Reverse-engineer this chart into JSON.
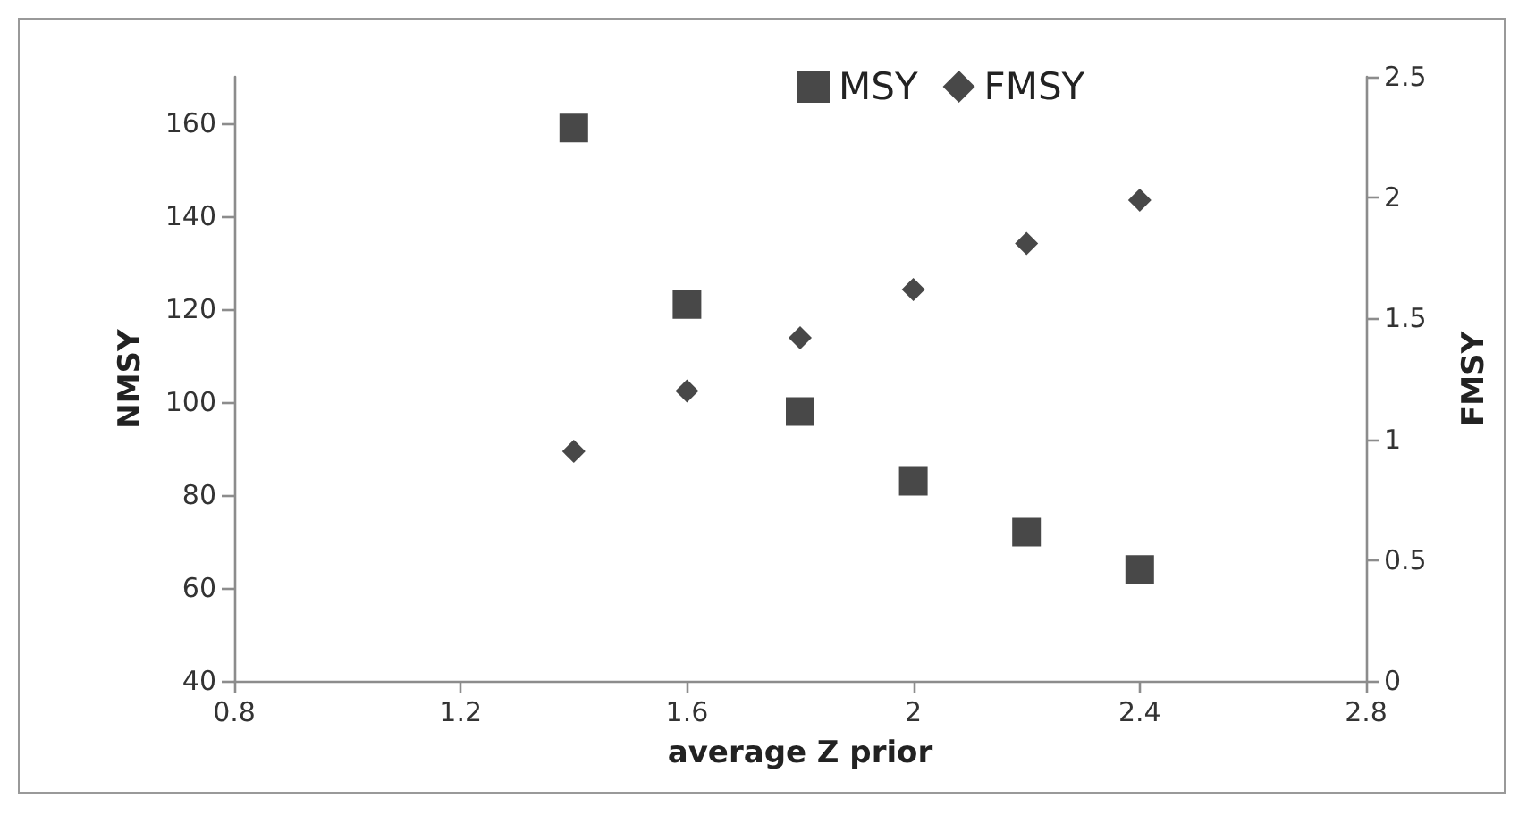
{
  "chart_data": {
    "type": "scatter",
    "xlabel": "average Z prior",
    "ylabel": "NMSY",
    "y2label": "FMSY",
    "x": [
      1.4,
      1.6,
      1.8,
      2.0,
      2.2,
      2.4
    ],
    "series": [
      {
        "name": "MSY",
        "color": "#1a1a1a",
        "marker": "square",
        "values": [
          159,
          121,
          98,
          83,
          72,
          64
        ]
      },
      {
        "name": "FMSY",
        "color": "#1a1a1a",
        "marker": "diamond",
        "axis": "y2",
        "values": [
          0.95,
          1.2,
          1.42,
          1.62,
          1.81,
          1.99
        ]
      }
    ],
    "xlim": [
      0.8,
      2.8
    ],
    "xticks": [
      0.8,
      1.2,
      1.6,
      2,
      2.4,
      2.8
    ],
    "ylim": [
      40,
      170
    ],
    "yticks": [
      40,
      60,
      80,
      100,
      120,
      140,
      160
    ],
    "y2lim": [
      0,
      2.5
    ],
    "y2ticks": [
      0,
      0.5,
      1,
      1.5,
      2,
      2.5
    ],
    "grid": false,
    "legend": "top"
  }
}
